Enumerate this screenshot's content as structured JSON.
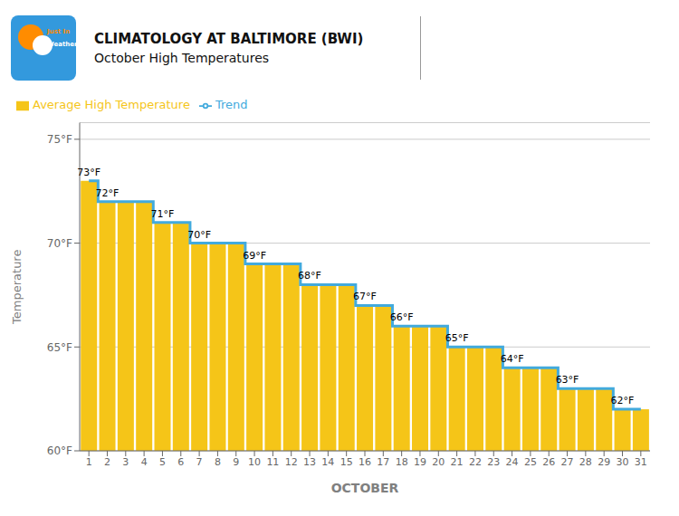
{
  "chart_data": {
    "type": "bar",
    "title": "CLIMATOLOGY AT BALTIMORE (BWI)",
    "subtitle": "October High Temperatures",
    "x_label": "OCTOBER",
    "y_label": "Temperature",
    "categories": [
      "1",
      "2",
      "3",
      "4",
      "5",
      "6",
      "7",
      "8",
      "9",
      "10",
      "11",
      "12",
      "13",
      "14",
      "15",
      "16",
      "17",
      "18",
      "19",
      "20",
      "21",
      "22",
      "23",
      "24",
      "25",
      "26",
      "27",
      "28",
      "29",
      "30",
      "31"
    ],
    "series": [
      {
        "name": "Average High Temperature",
        "type": "bar",
        "color": "#F5C518",
        "values": [
          73,
          72,
          72,
          72,
          71,
          71,
          70,
          70,
          70,
          69,
          69,
          69,
          68,
          68,
          68,
          67,
          67,
          66,
          66,
          66,
          65,
          65,
          65,
          64,
          64,
          64,
          63,
          63,
          63,
          62,
          62
        ]
      },
      {
        "name": "Trend",
        "type": "line",
        "color": "#42AADD",
        "line_style": "step",
        "values": [
          73,
          72,
          72,
          72,
          71,
          71,
          70,
          70,
          70,
          69,
          69,
          69,
          68,
          68,
          68,
          67,
          67,
          66,
          66,
          66,
          65,
          65,
          65,
          64,
          64,
          64,
          63,
          63,
          63,
          62,
          62
        ]
      }
    ],
    "ylim": [
      60,
      75.8
    ],
    "yticks": [
      {
        "value": 60,
        "label": "60°F"
      },
      {
        "value": 65,
        "label": "65°F"
      },
      {
        "value": 70,
        "label": "70°F"
      },
      {
        "value": 75,
        "label": "75°F"
      }
    ],
    "grid": true,
    "legend": "upper left",
    "annotations": [
      {
        "x": "1",
        "y": 73,
        "text": "73°F"
      },
      {
        "x": "2",
        "y": 72,
        "text": "72°F"
      },
      {
        "x": "5",
        "y": 71,
        "text": "71°F"
      },
      {
        "x": "7",
        "y": 70,
        "text": "70°F"
      },
      {
        "x": "10",
        "y": 69,
        "text": "69°F"
      },
      {
        "x": "13",
        "y": 68,
        "text": "68°F"
      },
      {
        "x": "16",
        "y": 67,
        "text": "67°F"
      },
      {
        "x": "18",
        "y": 66,
        "text": "66°F"
      },
      {
        "x": "21",
        "y": 65,
        "text": "65°F"
      },
      {
        "x": "24",
        "y": 64,
        "text": "64°F"
      },
      {
        "x": "27",
        "y": 63,
        "text": "63°F"
      },
      {
        "x": "30",
        "y": 62,
        "text": "62°F"
      },
      {
        "text": "Just In"
      },
      {
        "text": "Weather"
      }
    ]
  }
}
